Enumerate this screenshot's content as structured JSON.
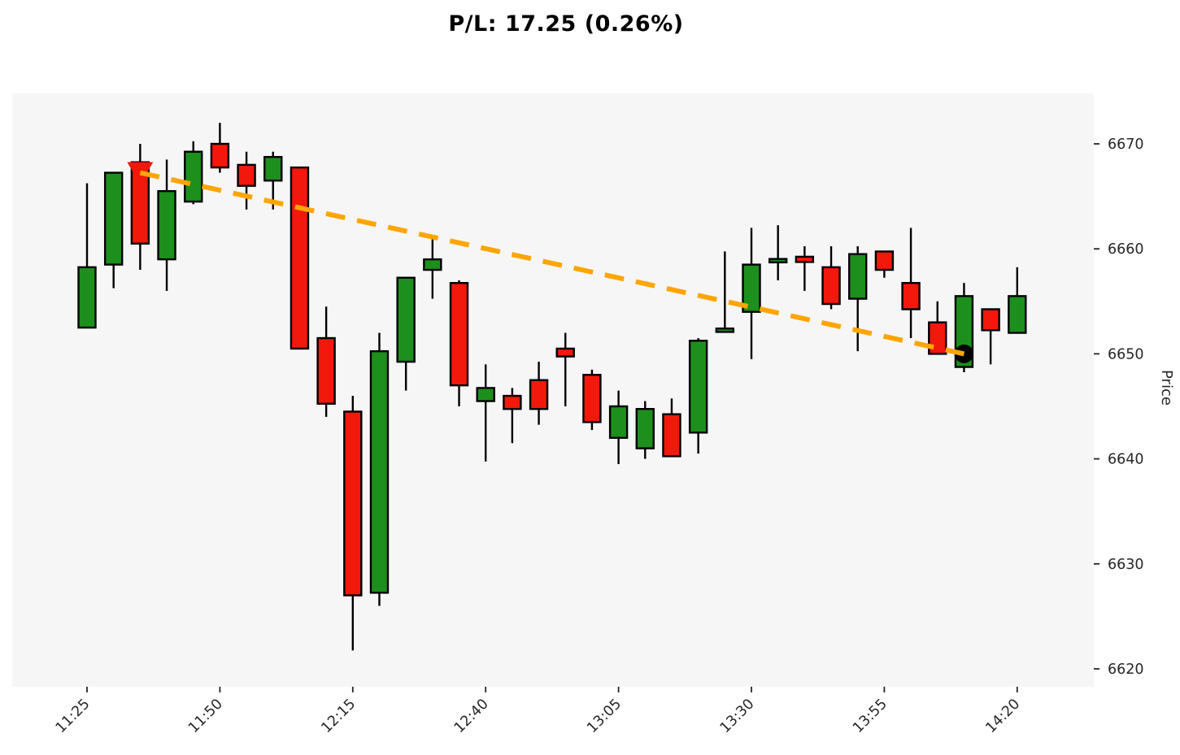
{
  "title": "P/L: 17.25 (0.26%)",
  "chart_data": {
    "type": "candlestick",
    "title": "P/L: 17.25 (0.26%)",
    "xlabel": "",
    "ylabel": "Price",
    "y_ticks": [
      6620,
      6630,
      6640,
      6650,
      6660,
      6670
    ],
    "ylim": [
      6618.3,
      6674.8
    ],
    "x_tick_labels": [
      "11:25",
      "11:50",
      "12:15",
      "12:40",
      "13:05",
      "13:30",
      "13:55",
      "14:20"
    ],
    "x_tick_rotation_deg": 45,
    "grid": false,
    "legend_position": "none",
    "candles": [
      {
        "time": "11:25",
        "open": 6652.5,
        "high": 6666.25,
        "low": 6652.5,
        "close": 6658.25
      },
      {
        "time": "11:30",
        "open": 6658.5,
        "high": 6667.25,
        "low": 6656.25,
        "close": 6667.25
      },
      {
        "time": "11:35",
        "open": 6668.25,
        "high": 6670.0,
        "low": 6658.0,
        "close": 6660.5
      },
      {
        "time": "11:40",
        "open": 6659.0,
        "high": 6668.5,
        "low": 6656.0,
        "close": 6665.5
      },
      {
        "time": "11:45",
        "open": 6664.5,
        "high": 6670.25,
        "low": 6664.25,
        "close": 6669.25
      },
      {
        "time": "11:50",
        "open": 6670.0,
        "high": 6672.0,
        "low": 6667.25,
        "close": 6667.75
      },
      {
        "time": "11:55",
        "open": 6668.0,
        "high": 6669.25,
        "low": 6663.75,
        "close": 6666.0
      },
      {
        "time": "12:00",
        "open": 6666.5,
        "high": 6669.25,
        "low": 6663.75,
        "close": 6668.75
      },
      {
        "time": "12:05",
        "open": 6667.75,
        "high": 6667.75,
        "low": 6650.5,
        "close": 6650.5
      },
      {
        "time": "12:10",
        "open": 6651.5,
        "high": 6654.5,
        "low": 6644.0,
        "close": 6645.25
      },
      {
        "time": "12:15",
        "open": 6644.5,
        "high": 6646.0,
        "low": 6621.75,
        "close": 6627.0
      },
      {
        "time": "12:20",
        "open": 6627.25,
        "high": 6652.0,
        "low": 6626.0,
        "close": 6650.25
      },
      {
        "time": "12:25",
        "open": 6649.25,
        "high": 6657.25,
        "low": 6646.5,
        "close": 6657.25
      },
      {
        "time": "12:30",
        "open": 6658.0,
        "high": 6661.0,
        "low": 6655.25,
        "close": 6659.0
      },
      {
        "time": "12:35",
        "open": 6656.75,
        "high": 6657.0,
        "low": 6645.0,
        "close": 6647.0
      },
      {
        "time": "12:40",
        "open": 6645.5,
        "high": 6649.0,
        "low": 6639.75,
        "close": 6646.75
      },
      {
        "time": "12:45",
        "open": 6646.0,
        "high": 6646.75,
        "low": 6641.5,
        "close": 6644.75
      },
      {
        "time": "12:50",
        "open": 6647.5,
        "high": 6649.25,
        "low": 6643.25,
        "close": 6644.75
      },
      {
        "time": "12:55",
        "open": 6650.5,
        "high": 6652.0,
        "low": 6645.0,
        "close": 6649.75
      },
      {
        "time": "13:00",
        "open": 6648.0,
        "high": 6648.5,
        "low": 6642.75,
        "close": 6643.5
      },
      {
        "time": "13:05",
        "open": 6642.0,
        "high": 6646.5,
        "low": 6639.5,
        "close": 6645.0
      },
      {
        "time": "13:10",
        "open": 6641.0,
        "high": 6645.5,
        "low": 6640.0,
        "close": 6644.75
      },
      {
        "time": "13:15",
        "open": 6644.25,
        "high": 6645.75,
        "low": 6640.25,
        "close": 6640.25
      },
      {
        "time": "13:20",
        "open": 6642.5,
        "high": 6651.5,
        "low": 6640.5,
        "close": 6651.25
      },
      {
        "time": "13:25",
        "open": 6652.25,
        "high": 6659.75,
        "low": 6652.25,
        "close": 6652.25
      },
      {
        "time": "13:30",
        "open": 6654.0,
        "high": 6662.0,
        "low": 6649.5,
        "close": 6658.5
      },
      {
        "time": "13:35",
        "open": 6658.75,
        "high": 6662.25,
        "low": 6657.0,
        "close": 6659.0
      },
      {
        "time": "13:40",
        "open": 6659.25,
        "high": 6660.25,
        "low": 6656.0,
        "close": 6658.75
      },
      {
        "time": "13:45",
        "open": 6658.25,
        "high": 6660.25,
        "low": 6654.25,
        "close": 6654.75
      },
      {
        "time": "13:50",
        "open": 6655.25,
        "high": 6660.25,
        "low": 6650.25,
        "close": 6659.5
      },
      {
        "time": "13:55",
        "open": 6659.75,
        "high": 6659.75,
        "low": 6657.25,
        "close": 6658.0
      },
      {
        "time": "14:00",
        "open": 6656.75,
        "high": 6662.0,
        "low": 6651.5,
        "close": 6654.25
      },
      {
        "time": "14:05",
        "open": 6653.0,
        "high": 6655.0,
        "low": 6650.0,
        "close": 6650.0
      },
      {
        "time": "14:10",
        "open": 6648.75,
        "high": 6656.75,
        "low": 6648.25,
        "close": 6655.5
      },
      {
        "time": "14:15",
        "open": 6654.25,
        "high": 6654.25,
        "low": 6649.0,
        "close": 6652.25
      },
      {
        "time": "14:20",
        "open": 6652.0,
        "high": 6658.25,
        "low": 6652.0,
        "close": 6655.5
      }
    ],
    "trade": {
      "pl_points": "17.25",
      "pl_percent": "0.26%",
      "entry": {
        "time": "11:35",
        "price": 6667.25,
        "marker": "triangle-down",
        "color": "#f2180c"
      },
      "exit": {
        "time": "14:10",
        "price": 6650.0,
        "marker": "circle",
        "color": "#000000"
      },
      "connector": {
        "style": "dashed",
        "color": "#ffa500"
      }
    },
    "colors": {
      "up": "#1d8f1d",
      "down": "#f2180c",
      "edge": "#000000",
      "wick": "#000000",
      "trend": "#ffa500",
      "plot_bg": "#f6f6f6",
      "fig_bg": "#ffffff",
      "text": "#262626"
    }
  }
}
